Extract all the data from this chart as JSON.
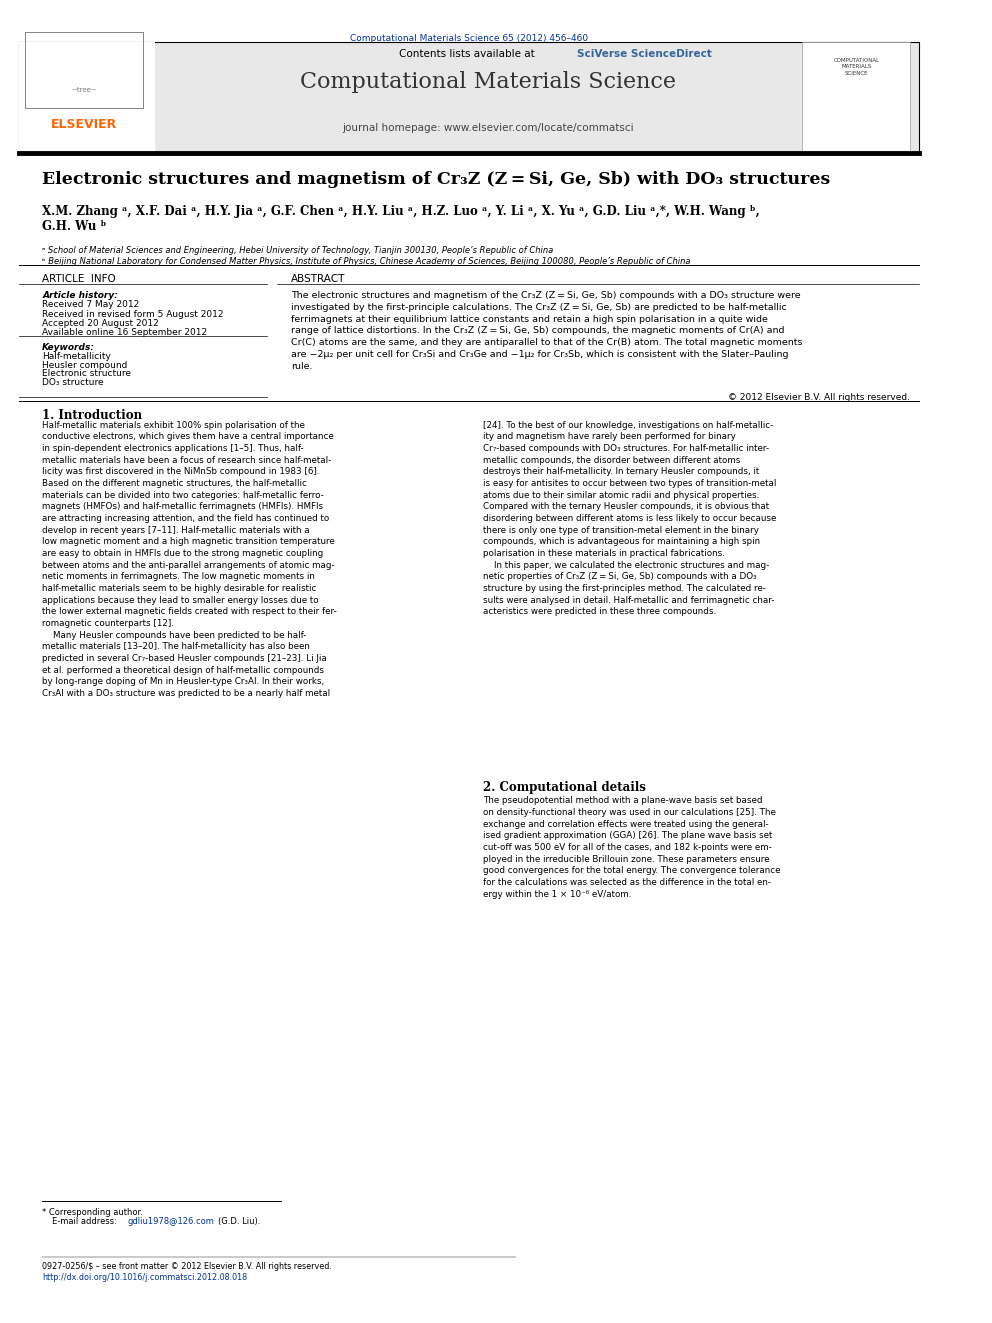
{
  "page_width": 9.92,
  "page_height": 13.23,
  "background_color": "#ffffff",
  "top_journal_ref": "Computational Materials Science 65 (2012) 456–460",
  "top_journal_ref_color": "#003399",
  "header_bg_color": "#e8e8e8",
  "header_journal_name": "Computational Materials Science",
  "header_contents_text": "Contents lists available at ",
  "header_sciverse": "SciVerse ScienceDirect",
  "header_homepage": "journal homepage: www.elsevier.com/locate/commatsci",
  "elsevier_color": "#ff6600",
  "sciverse_color": "#336699",
  "title": "Electronic structures and magnetism of Cr₃Z (Z = Si, Ge, Sb) with DO₃ structures",
  "authors": "X.M. Zhang ᵃ, X.F. Dai ᵃ, H.Y. Jia ᵃ, G.F. Chen ᵃ, H.Y. Liu ᵃ, H.Z. Luo ᵃ, Y. Li ᵃ, X. Yu ᵃ, G.D. Liu ᵃ,*, W.H. Wang ᵇ,\nG.H. Wu ᵇ",
  "affil_a": "ᵃ School of Material Sciences and Engineering, Hebei University of Technology, Tianjin 300130, People’s Republic of China",
  "affil_b": "ᵇ Beijing National Laboratory for Condensed Matter Physics, Institute of Physics, Chinese Academy of Sciences, Beijing 100080, People’s Republic of China",
  "article_info_header": "ARTICLE  INFO",
  "abstract_header": "ABSTRACT",
  "article_history_label": "Article history:",
  "received": "Received 7 May 2012",
  "received_revised": "Received in revised form 5 August 2012",
  "accepted": "Accepted 20 August 2012",
  "available": "Available online 16 September 2012",
  "keywords_label": "Keywords:",
  "keywords": [
    "Half-metallicity",
    "Heusler compound",
    "Electronic structure",
    "DO₃ structure"
  ],
  "abstract_text": "The electronic structures and magnetism of the Cr₃Z (Z = Si, Ge, Sb) compounds with a DO₃ structure were\ninvestigated by the first-principle calculations. The Cr₃Z (Z = Si, Ge, Sb) are predicted to be half-metallic\nferrimagnets at their equilibrium lattice constants and retain a high spin polarisation in a quite wide\nrange of lattice distortions. In the Cr₃Z (Z = Si, Ge, Sb) compounds, the magnetic moments of Cr(A) and\nCr(C) atoms are the same, and they are antiparallel to that of the Cr(B) atom. The total magnetic moments\nare −2μ₂ per unit cell for Cr₃Si and Cr₃Ge and −1μ₂ for Cr₃Sb, which is consistent with the Slater–Pauling\nrule.",
  "copyright": "© 2012 Elsevier B.V. All rights reserved.",
  "section1_title": "1. Introduction",
  "section1_col1": "Half-metallic materials exhibit 100% spin polarisation of the\nconductive electrons, which gives them have a central importance\nin spin-dependent electronics applications [1–5]. Thus, half-\nmetallic materials have been a focus of research since half-metal-\nlicity was first discovered in the NiMnSb compound in 1983 [6].\nBased on the different magnetic structures, the half-metallic\nmaterials can be divided into two categories: half-metallic ferro-\nmagnets (HMFOs) and half-metallic ferrimagnets (HMFIs). HMFIs\nare attracting increasing attention, and the field has continued to\ndevelop in recent years [7–11]. Half-metallic materials with a\nlow magnetic moment and a high magnetic transition temperature\nare easy to obtain in HMFIs due to the strong magnetic coupling\nbetween atoms and the anti-parallel arrangements of atomic mag-\nnetic moments in ferrimagnets. The low magnetic moments in\nhalf-metallic materials seem to be highly desirable for realistic\napplications because they lead to smaller energy losses due to\nthe lower external magnetic fields created with respect to their fer-\nromagnetic counterparts [12].\n    Many Heusler compounds have been predicted to be half-\nmetallic materials [13–20]. The half-metallicity has also been\npredicted in several Cr₇-based Heusler compounds [21–23]. Li Jia\net al. performed a theoretical design of half-metallic compounds\nby long-range doping of Mn in Heusler-type Cr₃Al. In their works,\nCr₃Al with a DO₃ structure was predicted to be a nearly half metal",
  "section1_col2": "[24]. To the best of our knowledge, investigations on half-metallic-\nity and magnetism have rarely been performed for binary\nCr₇-based compounds with DO₃ structures. For half-metallic inter-\nmetallic compounds, the disorder between different atoms\ndestroys their half-metallicity. In ternary Heusler compounds, it\nis easy for antisites to occur between two types of transition-metal\natoms due to their similar atomic radii and physical properties.\nCompared with the ternary Heusler compounds, it is obvious that\ndisordering between different atoms is less likely to occur because\nthere is only one type of transition-metal element in the binary\ncompounds, which is advantageous for maintaining a high spin\npolarisation in these materials in practical fabrications.\n    In this paper, we calculated the electronic structures and mag-\nnetic properties of Cr₃Z (Z = Si, Ge, Sb) compounds with a DO₃\nstructure by using the first-principles method. The calculated re-\nsults were analysed in detail. Half-metallic and ferrimagnetic char-\nacteristics were predicted in these three compounds.",
  "section2_title": "2. Computational details",
  "section2_text": "The pseudopotential method with a plane-wave basis set based\non density-functional theory was used in our calculations [25]. The\nexchange and correlation effects were treated using the general-\nised gradient approximation (GGA) [26]. The plane wave basis set\ncut-off was 500 eV for all of the cases, and 182 k-points were em-\nployed in the irreducible Brillouin zone. These parameters ensure\ngood convergences for the total energy. The convergence tolerance\nfor the calculations was selected as the difference in the total en-\nergy within the 1 × 10⁻⁶ eV/atom.",
  "footnote_star": "* Corresponding author.",
  "footnote_email": "E-mail address: gdliu1978@126.com (G.D. Liu).",
  "footnote_email_color": "#003399",
  "footer_issn": "0927-0256/$ – see front matter © 2012 Elsevier B.V. All rights reserved.",
  "footer_doi": "http://dx.doi.org/10.1016/j.commatsci.2012.08.018",
  "footer_doi_color": "#003399"
}
